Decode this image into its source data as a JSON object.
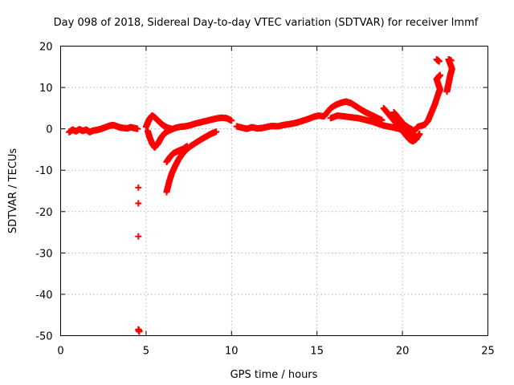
{
  "chart_data": {
    "type": "scatter",
    "title": "Day 098 of 2018, Sidereal Day-to-day VTEC variation (SDTVAR) for receiver lmmf",
    "xlabel": "GPS time / hours",
    "ylabel": "SDTVAR / TECUs",
    "xlim": [
      0,
      25
    ],
    "ylim": [
      -50,
      20
    ],
    "xticks": [
      0,
      5,
      10,
      15,
      20,
      25
    ],
    "yticks": [
      -50,
      -40,
      -30,
      -20,
      -10,
      0,
      10,
      20
    ],
    "grid": true,
    "marker": "plus",
    "color": "#ff0000",
    "series": [
      {
        "name": "SDTVAR",
        "points": [
          [
            0.5,
            -0.8
          ],
          [
            0.7,
            -0.2
          ],
          [
            0.9,
            -0.6
          ],
          [
            1.1,
            -0.1
          ],
          [
            1.3,
            -0.5
          ],
          [
            1.5,
            -0.2
          ],
          [
            1.7,
            -0.8
          ],
          [
            1.9,
            -0.4
          ],
          [
            2.1,
            -0.3
          ],
          [
            2.3,
            -0.1
          ],
          [
            2.5,
            0.2
          ],
          [
            2.7,
            0.5
          ],
          [
            2.9,
            0.8
          ],
          [
            3.1,
            0.9
          ],
          [
            3.3,
            0.6
          ],
          [
            3.5,
            0.3
          ],
          [
            3.7,
            0.2
          ],
          [
            3.9,
            0.1
          ],
          [
            4.1,
            0.4
          ],
          [
            4.3,
            0.2
          ],
          [
            4.5,
            0.0
          ],
          [
            4.55,
            -14.2
          ],
          [
            4.55,
            -18.0
          ],
          [
            4.55,
            -26.0
          ],
          [
            4.55,
            -48.5
          ],
          [
            4.6,
            -49.0
          ],
          [
            5.0,
            0.5
          ],
          [
            5.1,
            1.5
          ],
          [
            5.2,
            2.4
          ],
          [
            5.35,
            3.2
          ],
          [
            5.5,
            2.8
          ],
          [
            5.7,
            2.0
          ],
          [
            5.9,
            1.2
          ],
          [
            6.1,
            0.6
          ],
          [
            6.3,
            0.2
          ],
          [
            6.5,
            0.0
          ],
          [
            5.1,
            -0.5
          ],
          [
            5.2,
            -2.0
          ],
          [
            5.35,
            -3.5
          ],
          [
            5.5,
            -4.5
          ],
          [
            5.7,
            -3.5
          ],
          [
            5.9,
            -2.0
          ],
          [
            6.1,
            -1.0
          ],
          [
            6.3,
            -0.5
          ],
          [
            6.7,
            0.2
          ],
          [
            7.0,
            0.5
          ],
          [
            7.3,
            0.6
          ],
          [
            7.6,
            0.9
          ],
          [
            7.9,
            1.3
          ],
          [
            8.2,
            1.6
          ],
          [
            8.5,
            1.9
          ],
          [
            8.8,
            2.2
          ],
          [
            9.1,
            2.5
          ],
          [
            9.4,
            2.7
          ],
          [
            9.7,
            2.6
          ],
          [
            10.0,
            2.0
          ],
          [
            6.2,
            -15.3
          ],
          [
            6.35,
            -12.8
          ],
          [
            6.5,
            -10.8
          ],
          [
            6.7,
            -9.0
          ],
          [
            6.9,
            -7.4
          ],
          [
            7.1,
            -6.2
          ],
          [
            7.3,
            -5.2
          ],
          [
            7.6,
            -4.2
          ],
          [
            7.9,
            -3.4
          ],
          [
            8.2,
            -2.6
          ],
          [
            8.5,
            -1.9
          ],
          [
            8.8,
            -1.2
          ],
          [
            9.1,
            -0.7
          ],
          [
            6.2,
            -8.0
          ],
          [
            6.4,
            -6.8
          ],
          [
            6.6,
            -5.9
          ],
          [
            6.9,
            -5.3
          ],
          [
            7.2,
            -4.8
          ],
          [
            7.4,
            -4.2
          ],
          [
            10.3,
            0.6
          ],
          [
            10.6,
            0.3
          ],
          [
            10.9,
            0.0
          ],
          [
            11.2,
            0.4
          ],
          [
            11.5,
            0.1
          ],
          [
            11.8,
            0.2
          ],
          [
            12.1,
            0.5
          ],
          [
            12.4,
            0.7
          ],
          [
            12.7,
            0.6
          ],
          [
            13.0,
            0.9
          ],
          [
            13.3,
            1.1
          ],
          [
            13.6,
            1.3
          ],
          [
            13.9,
            1.6
          ],
          [
            14.2,
            2.0
          ],
          [
            14.5,
            2.4
          ],
          [
            14.8,
            2.9
          ],
          [
            15.1,
            3.2
          ],
          [
            15.4,
            3.0
          ],
          [
            15.5,
            3.5
          ],
          [
            15.8,
            5.0
          ],
          [
            16.1,
            5.8
          ],
          [
            16.4,
            6.3
          ],
          [
            16.7,
            6.6
          ],
          [
            17.0,
            6.2
          ],
          [
            17.3,
            5.4
          ],
          [
            17.6,
            4.6
          ],
          [
            17.9,
            3.9
          ],
          [
            18.2,
            3.3
          ],
          [
            18.5,
            2.7
          ],
          [
            18.8,
            2.1
          ],
          [
            15.8,
            2.6
          ],
          [
            16.2,
            3.2
          ],
          [
            16.6,
            3.0
          ],
          [
            17.0,
            2.8
          ],
          [
            17.4,
            2.6
          ],
          [
            17.8,
            2.2
          ],
          [
            18.2,
            1.8
          ],
          [
            18.6,
            1.2
          ],
          [
            19.0,
            0.7
          ],
          [
            19.4,
            0.4
          ],
          [
            19.8,
            0.0
          ],
          [
            20.2,
            -0.6
          ],
          [
            20.5,
            -1.4
          ],
          [
            20.8,
            -1.9
          ],
          [
            18.9,
            5.0
          ],
          [
            19.2,
            3.5
          ],
          [
            19.5,
            2.0
          ],
          [
            19.8,
            0.5
          ],
          [
            20.0,
            -0.5
          ],
          [
            20.2,
            -1.5
          ],
          [
            20.4,
            -2.5
          ],
          [
            20.6,
            -3.0
          ],
          [
            20.8,
            -2.5
          ],
          [
            21.0,
            -1.2
          ],
          [
            19.5,
            4.0
          ],
          [
            19.8,
            2.5
          ],
          [
            20.1,
            1.0
          ],
          [
            20.4,
            0.2
          ],
          [
            20.7,
            -0.5
          ],
          [
            20.9,
            0.5
          ],
          [
            21.3,
            1.0
          ],
          [
            21.5,
            2.0
          ],
          [
            21.7,
            4.0
          ],
          [
            21.9,
            6.0
          ],
          [
            22.1,
            8.5
          ],
          [
            22.2,
            9.5
          ],
          [
            22.0,
            12.0
          ],
          [
            22.1,
            12.5
          ],
          [
            22.2,
            13.0
          ],
          [
            22.0,
            16.8
          ],
          [
            22.15,
            16.3
          ],
          [
            22.6,
            9.0
          ],
          [
            22.7,
            11.0
          ],
          [
            22.8,
            13.0
          ],
          [
            22.9,
            14.5
          ],
          [
            22.7,
            16.8
          ],
          [
            22.85,
            16.5
          ]
        ]
      }
    ]
  }
}
